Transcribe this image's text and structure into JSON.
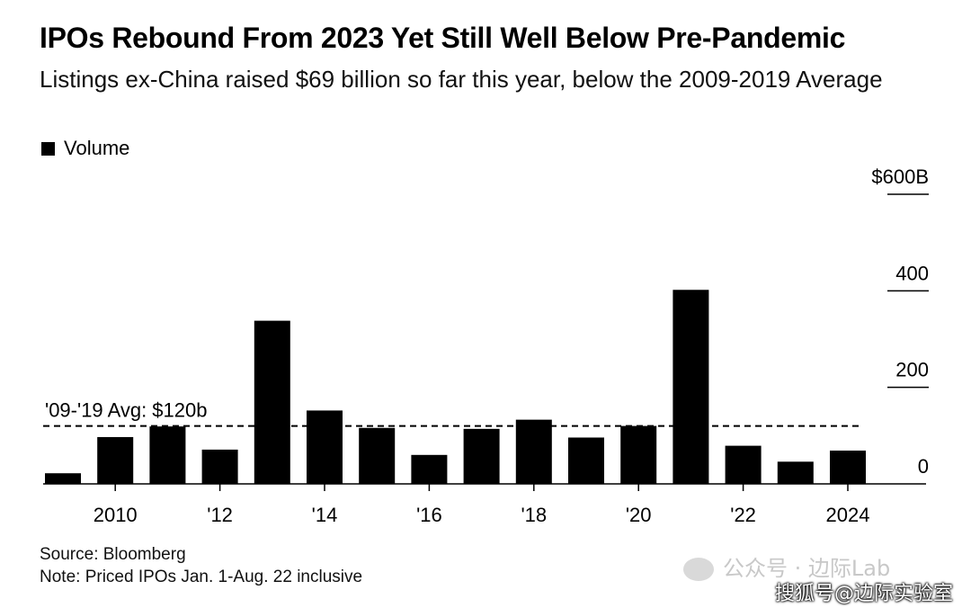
{
  "header": {
    "title": "IPOs Rebound From 2023 Yet Still Well Below Pre-Pandemic",
    "subtitle": "Listings ex-China raised $69 billion so far this year, below the 2009-2019 Average"
  },
  "legend": {
    "label": "Volume",
    "color": "#000000"
  },
  "chart_data": {
    "type": "bar",
    "categories": [
      "2009",
      "2010",
      "2011",
      "2012",
      "2013",
      "2014",
      "2015",
      "2016",
      "2017",
      "2018",
      "2019",
      "2020",
      "2021",
      "2022",
      "2023",
      "2024"
    ],
    "x_tick_labels": [
      {
        "year": "2010",
        "label": "2010"
      },
      {
        "year": "2012",
        "label": "'12"
      },
      {
        "year": "2014",
        "label": "'14"
      },
      {
        "year": "2016",
        "label": "'16"
      },
      {
        "year": "2018",
        "label": "'18"
      },
      {
        "year": "2020",
        "label": "'20"
      },
      {
        "year": "2022",
        "label": "'22"
      },
      {
        "year": "2024",
        "label": "2024"
      }
    ],
    "series": [
      {
        "name": "Volume",
        "values": [
          22,
          97,
          119,
          71,
          338,
          152,
          116,
          60,
          114,
          133,
          96,
          120,
          402,
          79,
          46,
          69
        ]
      }
    ],
    "ylim": [
      0,
      600
    ],
    "y_ticks": [
      {
        "value": 0,
        "label": "0"
      },
      {
        "value": 200,
        "label": "200"
      },
      {
        "value": 400,
        "label": "400"
      },
      {
        "value": 600,
        "label": "$600B"
      }
    ],
    "y_axis_side": "right",
    "reference_line": {
      "value": 120,
      "label": "'09-'19 Avg: $120b",
      "style": "dashed"
    },
    "bar_color": "#000000"
  },
  "footer": {
    "source": "Source: Bloomberg",
    "note": "Note: Priced IPOs Jan. 1-Aug. 22 inclusive"
  },
  "watermark": {
    "primary": "公众号 · 边际Lab",
    "secondary": "搜狐号@边际实验室"
  }
}
